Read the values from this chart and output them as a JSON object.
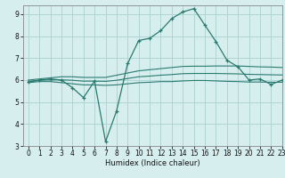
{
  "xlabel": "Humidex (Indice chaleur)",
  "bg_color": "#d7eeee",
  "grid_color": "#b0d4d4",
  "line_color": "#2a7a70",
  "xlim": [
    -0.5,
    23
  ],
  "ylim": [
    3,
    9.4
  ],
  "xticks": [
    0,
    1,
    2,
    3,
    4,
    5,
    6,
    7,
    8,
    9,
    10,
    11,
    12,
    13,
    14,
    15,
    16,
    17,
    18,
    19,
    20,
    21,
    22,
    23
  ],
  "yticks": [
    3,
    4,
    5,
    6,
    7,
    8,
    9
  ],
  "hours": [
    0,
    1,
    2,
    3,
    4,
    5,
    6,
    7,
    8,
    9,
    10,
    11,
    12,
    13,
    14,
    15,
    16,
    17,
    18,
    19,
    20,
    21,
    22,
    23
  ],
  "main_line": [
    5.9,
    6.0,
    6.05,
    6.0,
    5.65,
    5.2,
    5.95,
    3.2,
    4.6,
    6.75,
    7.8,
    7.9,
    8.25,
    8.8,
    9.1,
    9.25,
    8.5,
    7.75,
    6.9,
    6.6,
    6.0,
    6.05,
    5.8,
    6.0
  ],
  "upper_line": [
    6.0,
    6.05,
    6.1,
    6.15,
    6.15,
    6.12,
    6.12,
    6.12,
    6.22,
    6.32,
    6.42,
    6.47,
    6.52,
    6.57,
    6.62,
    6.63,
    6.63,
    6.64,
    6.64,
    6.64,
    6.62,
    6.6,
    6.59,
    6.57
  ],
  "lower_line": [
    5.88,
    5.93,
    5.93,
    5.88,
    5.83,
    5.78,
    5.78,
    5.76,
    5.78,
    5.83,
    5.88,
    5.9,
    5.93,
    5.93,
    5.96,
    5.98,
    5.98,
    5.96,
    5.94,
    5.93,
    5.91,
    5.91,
    5.9,
    5.9
  ],
  "mean_line": [
    5.94,
    5.99,
    6.01,
    6.01,
    5.99,
    5.95,
    5.95,
    5.94,
    5.99,
    6.07,
    6.15,
    6.18,
    6.22,
    6.25,
    6.29,
    6.3,
    6.3,
    6.3,
    6.29,
    6.28,
    6.26,
    6.25,
    6.24,
    6.23
  ]
}
